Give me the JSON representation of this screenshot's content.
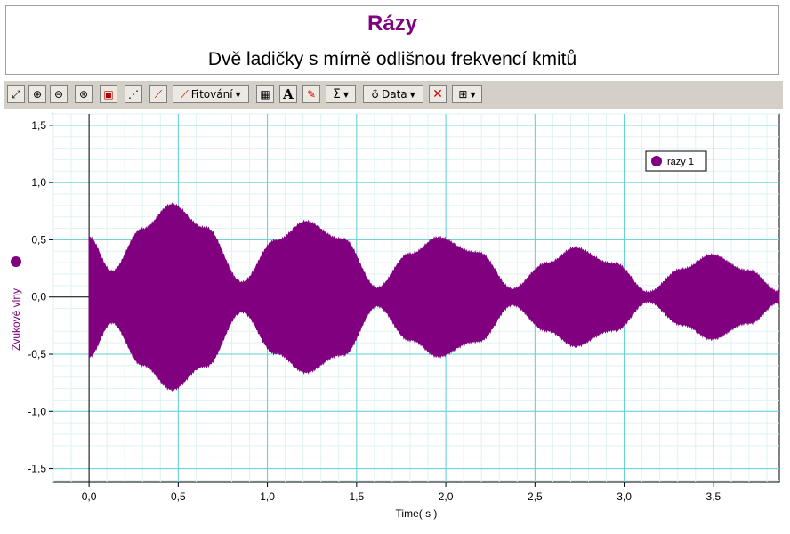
{
  "title": "Rázy",
  "subtitle": "Dvě ladičky s mírně odlišnou frekvencí kmitů",
  "toolbar": {
    "buttons": [
      {
        "name": "autoscale-icon",
        "glyph": "⤢"
      },
      {
        "name": "zoom-in-icon",
        "glyph": "⊕"
      },
      {
        "name": "zoom-out-icon",
        "glyph": "⊖"
      },
      {
        "name": "zoom-graph-icon",
        "glyph": "⊛"
      },
      {
        "name": "lock-icon",
        "glyph": "▣"
      },
      {
        "name": "examine-icon",
        "glyph": "⋰"
      },
      {
        "name": "tangent-icon",
        "glyph": "⟋"
      }
    ],
    "fit_label": "Fitování",
    "buttons2": [
      {
        "name": "calculator-icon",
        "glyph": "▦"
      },
      {
        "name": "annotation-icon",
        "glyph": "A"
      },
      {
        "name": "draw-prediction-icon",
        "glyph": "✎"
      }
    ],
    "stats_glyph": "Σ",
    "data_label": "Data",
    "delete_glyph": "✕",
    "options_glyph": "⊞",
    "fit_icon": "curve-fit-icon",
    "data_icon": "data-drop-icon"
  },
  "chart_data": {
    "type": "line",
    "xlabel": "Time( s )",
    "ylabel": "Zvukové vlny",
    "xlim": [
      -0.2,
      3.87
    ],
    "ylim": [
      -1.62,
      1.6
    ],
    "x_ticks": [
      "0,0",
      "0,5",
      "1,0",
      "1,5",
      "2,0",
      "2,5",
      "3,0",
      "3,5"
    ],
    "x_tick_values": [
      0,
      0.5,
      1.0,
      1.5,
      2.0,
      2.5,
      3.0,
      3.5
    ],
    "y_ticks": [
      "1,5",
      "1,0",
      "0,5",
      "0,0",
      "-0,5",
      "-1,0",
      "-1,5"
    ],
    "y_tick_values": [
      1.5,
      1.0,
      0.5,
      0.0,
      -0.5,
      -1.0,
      -1.5
    ],
    "grid": true,
    "legend_position": "top-right",
    "color": "#800080",
    "series": [
      {
        "name": "rázy 1",
        "envelope": {
          "t": [
            0.0,
            0.13,
            0.3,
            0.47,
            0.65,
            0.86,
            1.05,
            1.22,
            1.42,
            1.62,
            1.8,
            1.96,
            2.18,
            2.38,
            2.57,
            2.73,
            2.95,
            3.14,
            3.33,
            3.5,
            3.7,
            3.87
          ],
          "amplitude": [
            0.52,
            0.22,
            0.6,
            0.8,
            0.6,
            0.13,
            0.5,
            0.65,
            0.5,
            0.08,
            0.38,
            0.51,
            0.38,
            0.07,
            0.3,
            0.42,
            0.28,
            0.04,
            0.25,
            0.36,
            0.22,
            0.05
          ]
        }
      }
    ]
  }
}
